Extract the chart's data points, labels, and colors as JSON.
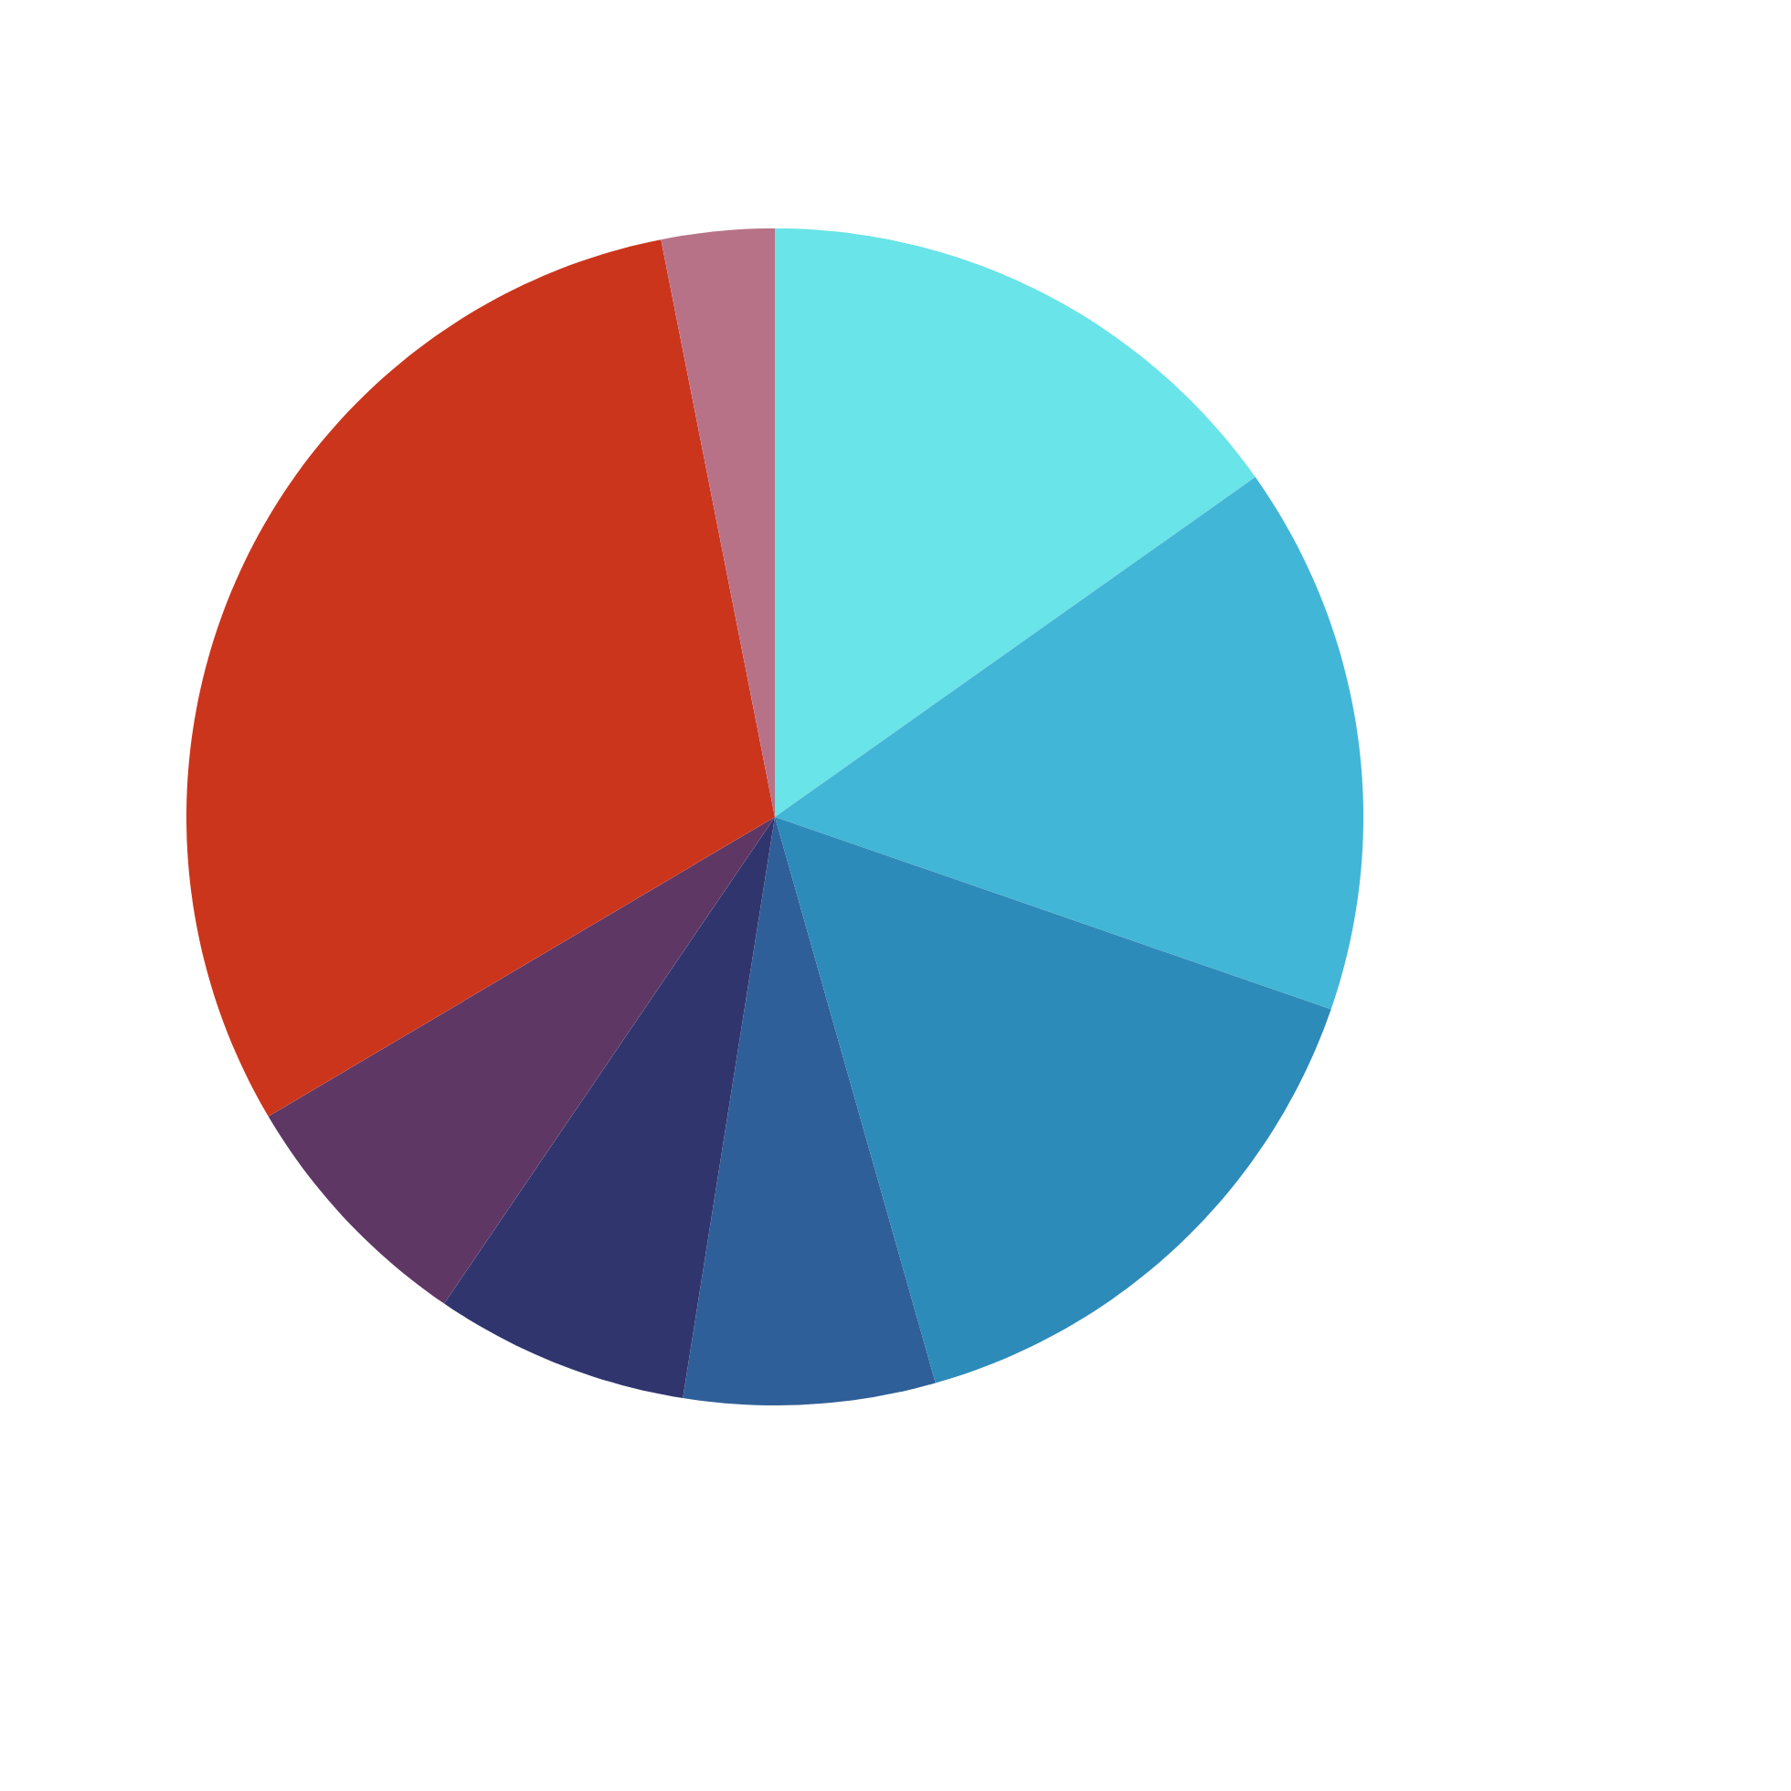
{
  "chart_data": {
    "type": "pie",
    "categories": [
      null,
      null,
      null,
      null,
      null,
      null,
      null,
      null
    ],
    "values": [
      15.2,
      15.1,
      15.3,
      6.9,
      7.0,
      7.0,
      30.4,
      3.1
    ],
    "colors": [
      "#69e4e8",
      "#42b6d6",
      "#2d8bba",
      "#2f5f98",
      "#31356e",
      "#5e3765",
      "#cb351c",
      "#b87287"
    ]
  }
}
